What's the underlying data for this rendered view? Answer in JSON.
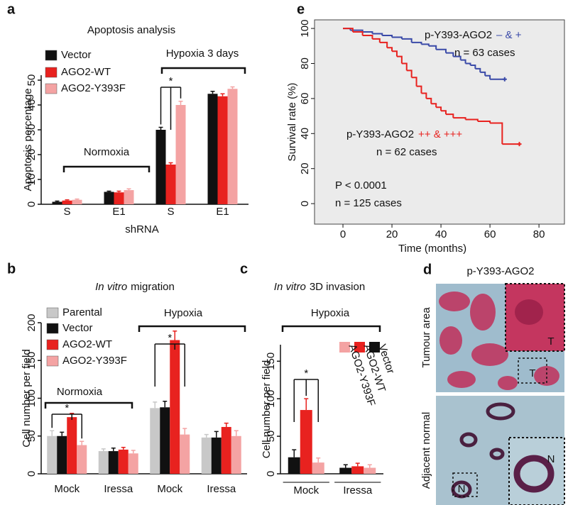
{
  "chart_data": [
    {
      "type": "bar",
      "panel_label": "a",
      "title": "Apoptosis analysis",
      "y_label": "Apoptosis percentage",
      "x_label": "shRNA",
      "groups": [
        {
          "name": "Normoxia",
          "categories": [
            "S",
            "E1"
          ]
        },
        {
          "name": "Hypoxia 3 days",
          "categories": [
            "S",
            "E1"
          ]
        }
      ],
      "series": [
        {
          "name": "Vector",
          "color": "#111111",
          "values": [
            1,
            5,
            30,
            44.5
          ],
          "errors": [
            0.3,
            0.3,
            1,
            1
          ]
        },
        {
          "name": "AGO2-WT",
          "color": "#e8221f",
          "values": [
            1.5,
            4.8,
            16,
            43.5
          ],
          "errors": [
            0.3,
            0.5,
            0.7,
            1
          ]
        },
        {
          "name": "AGO2-Y393F",
          "color": "#f4a3a3",
          "values": [
            1.8,
            5.7,
            40,
            46.5
          ],
          "errors": [
            0.3,
            0.5,
            1.5,
            0.8
          ]
        }
      ],
      "ylim": [
        0,
        52
      ],
      "yticks": [
        0,
        10,
        20,
        30,
        40,
        50
      ],
      "annotations": [
        "*"
      ]
    },
    {
      "type": "bar",
      "panel_label": "b",
      "title_italic": "In vitro",
      "title": "migration",
      "y_label": "Cell number per field",
      "groups": [
        {
          "name": "Normoxia",
          "categories": [
            "Mock",
            "Iressa"
          ]
        },
        {
          "name": "Hypoxia",
          "categories": [
            "Mock",
            "Iressa"
          ]
        }
      ],
      "series": [
        {
          "name": "Parental",
          "color": "#c8c8c8",
          "values": [
            50,
            30,
            87,
            48
          ],
          "errors": [
            7,
            3,
            8,
            4
          ]
        },
        {
          "name": "Vector",
          "color": "#111111",
          "values": [
            50,
            30,
            88,
            48
          ],
          "errors": [
            5,
            4,
            8,
            8
          ]
        },
        {
          "name": "AGO2-WT",
          "color": "#e8221f",
          "values": [
            75,
            32,
            177,
            62
          ],
          "errors": [
            5,
            3,
            12,
            5
          ]
        },
        {
          "name": "AGO2-Y393F",
          "color": "#f4a3a3",
          "values": [
            38,
            27,
            52,
            50
          ],
          "errors": [
            5,
            4,
            8,
            7
          ]
        }
      ],
      "ylim": [
        0,
        200
      ],
      "yticks": [
        0,
        50,
        100,
        150,
        200
      ],
      "annotations": [
        "*",
        "*"
      ]
    },
    {
      "type": "bar",
      "panel_label": "c",
      "title_italic": "In vitro",
      "title": "3D invasion",
      "y_label": "Cell number per field",
      "groups": [
        {
          "name": "Hypoxia",
          "categories": [
            "Mock",
            "Iressa"
          ]
        }
      ],
      "series": [
        {
          "name": "Vector",
          "color": "#111111",
          "values": [
            22,
            8
          ],
          "errors": [
            10,
            4
          ]
        },
        {
          "name": "AGO2-WT",
          "color": "#e8221f",
          "values": [
            85,
            10
          ],
          "errors": [
            15,
            4
          ]
        },
        {
          "name": "AGO2-Y393F",
          "color": "#f4a3a3",
          "values": [
            15,
            8
          ],
          "errors": [
            6,
            4
          ]
        }
      ],
      "ylim": [
        0,
        172
      ],
      "yticks": [
        0,
        50,
        100,
        150
      ],
      "annotations": [
        "*"
      ]
    },
    {
      "type": "step",
      "panel_label": "e",
      "x_label": "Time (months)",
      "y_label": "Survival rate (%)",
      "series": [
        {
          "label": "p-Y393-AGO2",
          "name": "– & +",
          "n_label": "n = 63 cases",
          "color": "#3a4aa8",
          "x": [
            0,
            3,
            8,
            12,
            16,
            20,
            24,
            28,
            32,
            35,
            38,
            42,
            45,
            48,
            50,
            52,
            54,
            56,
            58,
            60,
            66
          ],
          "values": [
            100,
            99,
            98,
            97,
            96,
            95,
            94,
            92,
            91,
            90,
            88,
            86,
            84,
            82,
            80,
            79,
            77,
            75,
            73,
            71,
            71
          ]
        },
        {
          "label": "p-Y393-AGO2",
          "name": "++ & +++",
          "n_label": "n = 62 cases",
          "color": "#e8221f",
          "x": [
            0,
            4,
            8,
            12,
            15,
            18,
            20,
            22,
            24,
            26,
            28,
            30,
            32,
            34,
            36,
            38,
            40,
            42,
            45,
            50,
            55,
            60,
            65,
            72
          ],
          "values": [
            100,
            98,
            96,
            94,
            92,
            89,
            87,
            84,
            80,
            76,
            72,
            67,
            63,
            60,
            57,
            55,
            53,
            51,
            49,
            48,
            47,
            46,
            34,
            34
          ]
        }
      ],
      "annotations": [
        {
          "text": "P < 0.0001",
          "color": "#e8221f"
        },
        {
          "text": "n = 125 cases"
        }
      ],
      "xlim": [
        -11.6,
        90.4
      ],
      "xticks": [
        0,
        20,
        40,
        60,
        80
      ],
      "ylim": [
        -11.7,
        104.9
      ],
      "yticks": [
        0,
        20,
        40,
        60,
        80,
        100
      ]
    }
  ],
  "image_panel": {
    "panel_label": "d",
    "title": "p-Y393-AGO2",
    "rows": [
      {
        "label": "Tumour area",
        "insets": [
          "T",
          "T"
        ]
      },
      {
        "label": "Adjacent normal",
        "insets": [
          "N",
          "N"
        ]
      }
    ]
  }
}
